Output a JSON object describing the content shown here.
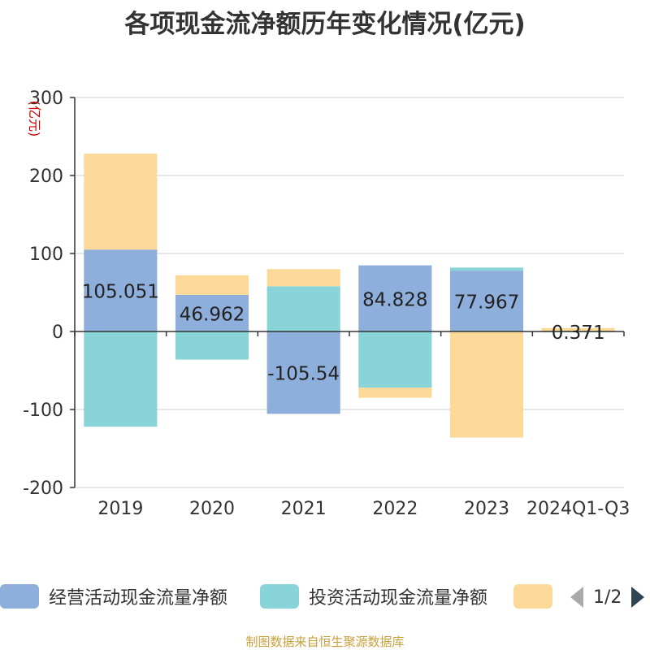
{
  "chart_data": {
    "type": "bar",
    "stacked": true,
    "title": "各项现金流净额历年变化情况(亿元)",
    "ylabel": "(亿元)",
    "categories": [
      "2019",
      "2020",
      "2021",
      "2022",
      "2023",
      "2024Q1-Q3"
    ],
    "ylim": [
      -200,
      300
    ],
    "yticks": [
      300,
      200,
      100,
      0,
      -100,
      -200
    ],
    "grid": true,
    "series": [
      {
        "name": "经营活动现金流量净额",
        "color": "#8eaedb",
        "values": [
          105.051,
          46.962,
          -105.54,
          84.828,
          77.967,
          0.371
        ],
        "labels": [
          "105.051",
          "46.962",
          "-105.54",
          "84.828",
          "77.967",
          "0.371"
        ]
      },
      {
        "name": "投资活动现金流量净额",
        "color": "#88d4d8",
        "values": [
          -122,
          -36,
          58,
          -72,
          4,
          -1
        ]
      },
      {
        "name": "",
        "color": "#fdd999",
        "values": [
          123,
          25,
          22,
          -13,
          -136,
          4
        ]
      }
    ],
    "legend": {
      "position": "bottom",
      "page": "1/2"
    }
  },
  "source": "制图数据来自恒生聚源数据库"
}
